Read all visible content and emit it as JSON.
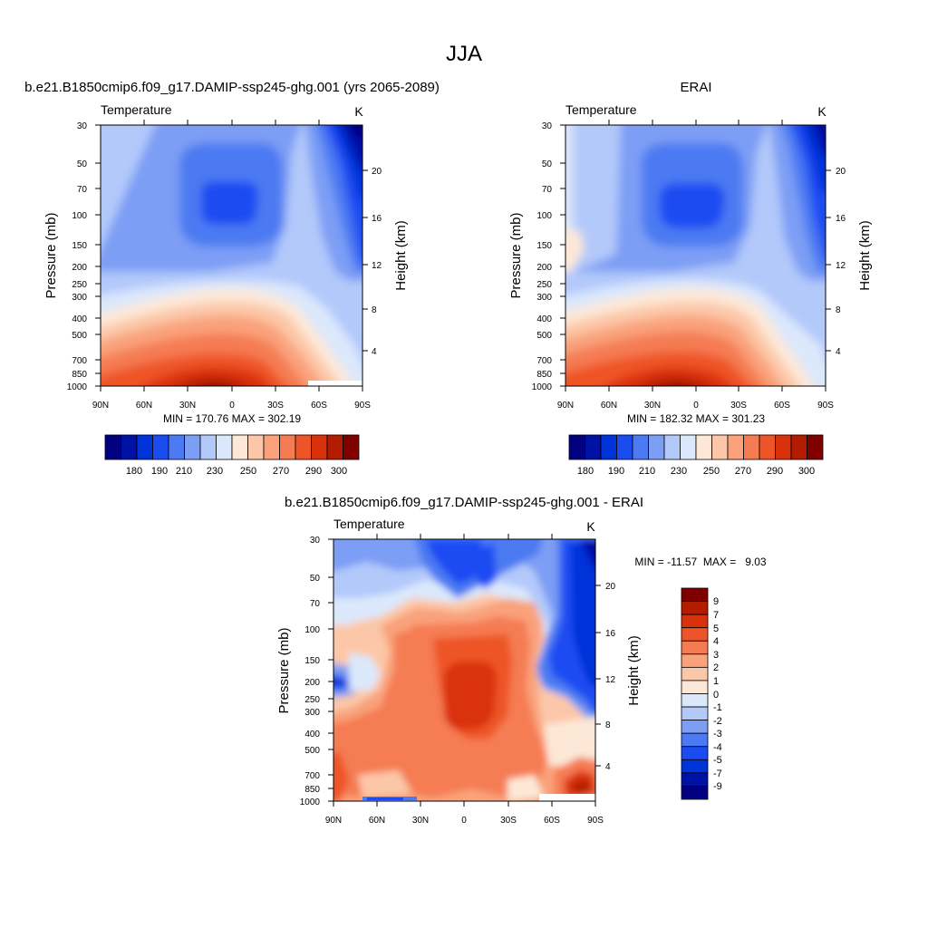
{
  "suptitle": "JJA",
  "chart_data": [
    {
      "type": "heatmap",
      "title": "b.e21.B1850cmip6.f09_g17.DAMIP-ssp245-ghg.001 (yrs 2065-2089)",
      "left_string": "Temperature",
      "right_string": "K",
      "ylabel": "Pressure (mb)",
      "ylabel_right": "Height (km)",
      "x_ticks": [
        "90N",
        "60N",
        "30N",
        "0",
        "30S",
        "60S",
        "90S"
      ],
      "y_ticks": [
        "30",
        "50",
        "70",
        "100",
        "150",
        "200",
        "250",
        "300",
        "400",
        "500",
        "700",
        "850",
        "1000"
      ],
      "height_ticks": [
        "20",
        "16",
        "12",
        "8",
        "4"
      ],
      "min_max": "MIN = 170.76  MAX = 302.19",
      "contour_levels": [
        175,
        180,
        185,
        190,
        200,
        210,
        220,
        230,
        240,
        250,
        260,
        270,
        280,
        290,
        295,
        300
      ],
      "colorbar_labels": [
        "180",
        "190",
        "210",
        "230",
        "250",
        "270",
        "290",
        "300"
      ],
      "min": 170.76,
      "max": 302.19
    },
    {
      "type": "heatmap",
      "title": "ERAI",
      "left_string": "Temperature",
      "right_string": "K",
      "ylabel": "Pressure (mb)",
      "ylabel_right": "Height (km)",
      "x_ticks": [
        "90N",
        "60N",
        "30N",
        "0",
        "30S",
        "60S",
        "90S"
      ],
      "y_ticks": [
        "30",
        "50",
        "70",
        "100",
        "150",
        "200",
        "250",
        "300",
        "400",
        "500",
        "700",
        "850",
        "1000"
      ],
      "height_ticks": [
        "20",
        "16",
        "12",
        "8",
        "4"
      ],
      "min_max": "MIN = 182.32  MAX = 301.23",
      "contour_levels": [
        175,
        180,
        185,
        190,
        200,
        210,
        220,
        230,
        240,
        250,
        260,
        270,
        280,
        290,
        295,
        300
      ],
      "colorbar_labels": [
        "180",
        "190",
        "210",
        "230",
        "250",
        "270",
        "290",
        "300"
      ],
      "min": 182.32,
      "max": 301.23
    },
    {
      "type": "heatmap",
      "title": "b.e21.B1850cmip6.f09_g17.DAMIP-ssp245-ghg.001 - ERAI",
      "left_string": "Temperature",
      "right_string": "K",
      "ylabel": "Pressure (mb)",
      "ylabel_right": "Height (km)",
      "x_ticks": [
        "90N",
        "60N",
        "30N",
        "0",
        "30S",
        "60S",
        "90S"
      ],
      "y_ticks": [
        "30",
        "50",
        "70",
        "100",
        "150",
        "200",
        "250",
        "300",
        "400",
        "500",
        "700",
        "850",
        "1000"
      ],
      "height_ticks": [
        "20",
        "16",
        "12",
        "8",
        "4"
      ],
      "min_max": "MIN = -11.57  MAX =   9.03",
      "contour_levels": [
        -9,
        -7,
        -5,
        -4,
        -3,
        -2,
        -1,
        0,
        1,
        2,
        3,
        4,
        5,
        7,
        9
      ],
      "colorbar_labels": [
        "9",
        "7",
        "5",
        "4",
        "3",
        "2",
        "1",
        "0",
        "-1",
        "-2",
        "-3",
        "-4",
        "-5",
        "-7",
        "-9"
      ],
      "min": -11.57,
      "max": 9.03
    }
  ],
  "colors": {
    "palette_16": [
      "#000080",
      "#0011a6",
      "#0033d9",
      "#1a4cf2",
      "#4c7af2",
      "#7d9ef5",
      "#b3c9fa",
      "#dbe8fc",
      "#fde8d7",
      "#fcc7a8",
      "#f9a27b",
      "#f57b52",
      "#ee5428",
      "#d9310c",
      "#b31c00",
      "#800000"
    ]
  }
}
